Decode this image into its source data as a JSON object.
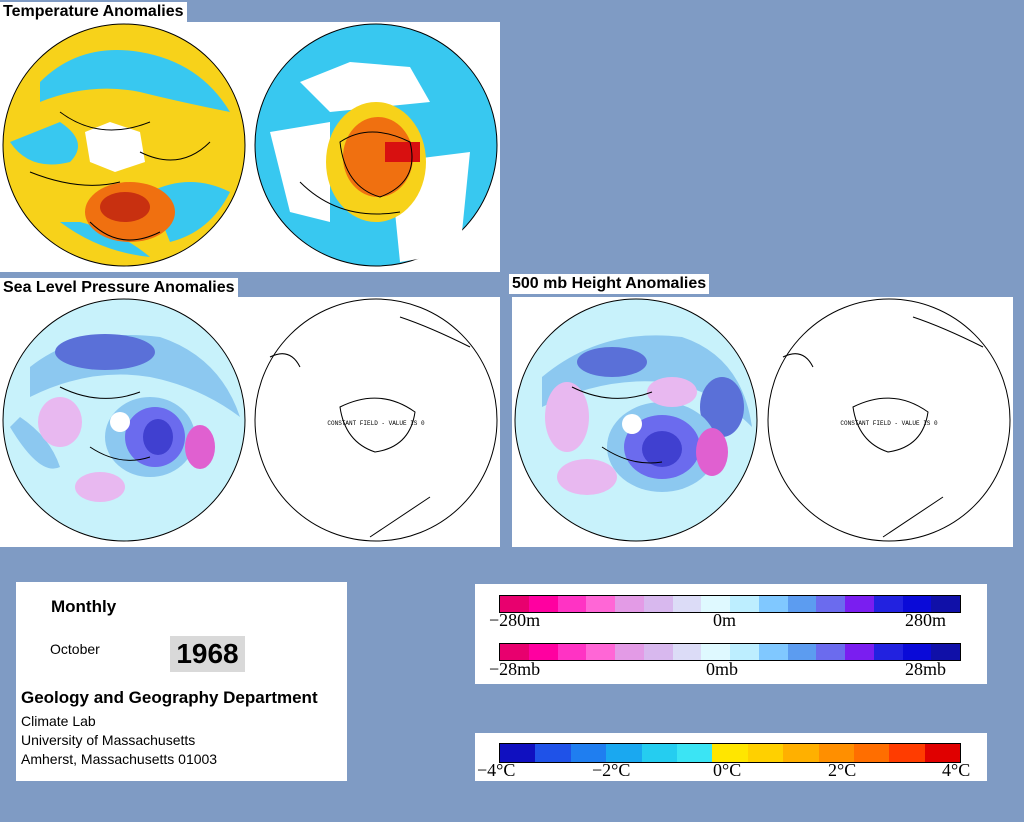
{
  "titles": {
    "temperature": "Temperature Anomalies",
    "slp": "Sea Level Pressure Anomalies",
    "height500": "500 mb Height Anomalies"
  },
  "map_note": "CONSTANT FIELD - VALUE IS 0",
  "info": {
    "period": "Monthly",
    "month": "October",
    "year": "1968",
    "department": "Geology and Geography Department",
    "lab": "Climate Lab",
    "university": "University of Massachusetts",
    "address": "Amherst, Massachusetts 01003"
  },
  "legend_height": {
    "min_label": "−280m",
    "mid_label": "0m",
    "max_label": "280m",
    "colors": [
      "#e8006e",
      "#ff00a0",
      "#ff33c4",
      "#ff66d6",
      "#e39be6",
      "#d8b8ee",
      "#dcdcf7",
      "#dff9ff",
      "#bdeeff",
      "#80c8ff",
      "#5c9cf0",
      "#6b6bee",
      "#7a1ef0",
      "#2222e0",
      "#0a0ad8",
      "#1010a8"
    ]
  },
  "legend_pressure": {
    "min_label": "−28mb",
    "mid_label": "0mb",
    "max_label": "28mb"
  },
  "legend_temp": {
    "min_label": "−4°C",
    "m2_label": "−2°C",
    "mid_label": "0°C",
    "p2_label": "2°C",
    "max_label": "4°C",
    "colors": [
      "#1010c0",
      "#1f52e8",
      "#1f7ef0",
      "#1aa8f0",
      "#25cdf0",
      "#3be4f4",
      "#ffe600",
      "#ffd000",
      "#ffb000",
      "#ff8f00",
      "#ff6e00",
      "#ff3c00",
      "#e00000"
    ]
  },
  "map_colors": {
    "cold": "#38c8f0",
    "warm": "#f7d21a",
    "hot": "#f07010",
    "neg_light": "#c8f2fb",
    "neg_mid": "#8cc8f0",
    "neg_dark": "#4040d0",
    "pos_light": "#e8b8f0",
    "pos_mid": "#e060d0"
  }
}
